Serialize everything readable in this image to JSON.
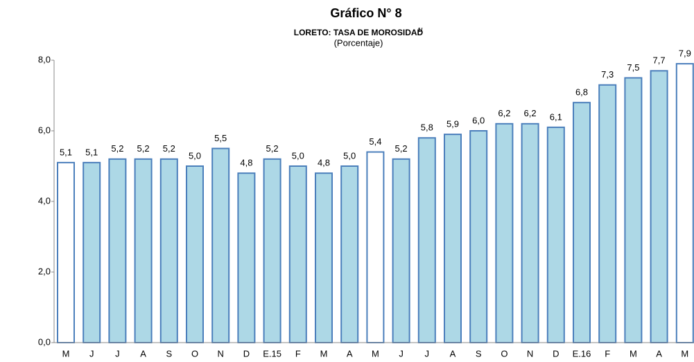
{
  "chart_data": {
    "type": "bar",
    "title": "Gráfico N° 8",
    "subtitle": "LORETO: TASA DE MOROSIDAD",
    "subtitle_note": "1/",
    "unit_label": "(Porcentaje)",
    "categories": [
      "M",
      "J",
      "J",
      "A",
      "S",
      "O",
      "N",
      "D",
      "E.15",
      "F",
      "M",
      "A",
      "M",
      "J",
      "J",
      "A",
      "S",
      "O",
      "N",
      "D",
      "E.16",
      "F",
      "M",
      "A",
      "M"
    ],
    "values": [
      5.1,
      5.1,
      5.2,
      5.2,
      5.2,
      5.0,
      5.5,
      4.8,
      5.2,
      5.0,
      4.8,
      5.0,
      5.4,
      5.2,
      5.8,
      5.9,
      6.0,
      6.2,
      6.2,
      6.1,
      6.8,
      7.3,
      7.5,
      7.7,
      7.9
    ],
    "value_labels": [
      "5,1",
      "5,1",
      "5,2",
      "5,2",
      "5,2",
      "5,0",
      "5,5",
      "4,8",
      "5,2",
      "5,0",
      "4,8",
      "5,0",
      "5,4",
      "5,2",
      "5,8",
      "5,9",
      "6,0",
      "6,2",
      "6,2",
      "6,1",
      "6,8",
      "7,3",
      "7,5",
      "7,7",
      "7,9"
    ],
    "colors": [
      "#ffffff",
      "#add8e6",
      "#add8e6",
      "#add8e6",
      "#add8e6",
      "#add8e6",
      "#add8e6",
      "#add8e6",
      "#add8e6",
      "#add8e6",
      "#add8e6",
      "#add8e6",
      "#ffffff",
      "#add8e6",
      "#add8e6",
      "#add8e6",
      "#add8e6",
      "#add8e6",
      "#add8e6",
      "#add8e6",
      "#add8e6",
      "#add8e6",
      "#add8e6",
      "#add8e6",
      "#ffffff"
    ],
    "edge_color": "#4a7ebb",
    "ylim": [
      0,
      8
    ],
    "yticks": [
      {
        "value": 0,
        "label": "0,0"
      },
      {
        "value": 2,
        "label": "2,0"
      },
      {
        "value": 4,
        "label": "4,0"
      },
      {
        "value": 6,
        "label": "6,0"
      },
      {
        "value": 8,
        "label": "8,0"
      }
    ],
    "grid": false
  }
}
